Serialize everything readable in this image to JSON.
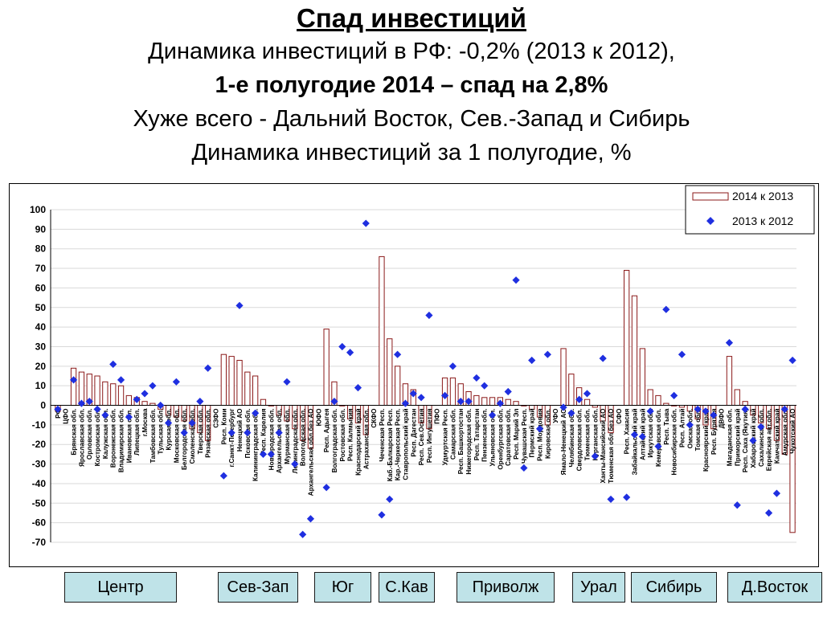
{
  "slide": {
    "title": "Спад инвестиций",
    "line1": "Динамика инвестиций в РФ: -0,2% (2013 к 2012),",
    "line2": "1-е полугодие 2014 – спад на 2,8%",
    "line3": "Хуже всего - Дальний Восток, Сев.-Запад и Сибирь",
    "line4": "Динамика инвестиций за 1 полугодие, %"
  },
  "regions": [
    "Центр",
    "Сев-Зап",
    "Юг",
    "С.Кав",
    "Приволж",
    "Урал",
    "Сибирь",
    "Д.Восток"
  ],
  "colors": {
    "bar_stroke": "#8b1a1a",
    "marker": "#1f2fe0",
    "button_bg": "#bfe3e8",
    "grid": "#d9d9d9"
  },
  "chart_data": {
    "type": "bar",
    "ylim": [
      -70,
      100
    ],
    "yticks": [
      100,
      90,
      80,
      70,
      60,
      50,
      40,
      30,
      20,
      10,
      0,
      -10,
      -20,
      -30,
      -40,
      -50,
      -60,
      -70
    ],
    "grid": true,
    "legend_position": "top-right",
    "series": [
      {
        "name": "2014 к 2013",
        "kind": "bar"
      },
      {
        "name": "2013 к 2012",
        "kind": "scatter"
      }
    ],
    "points": [
      {
        "label": "РФ",
        "bar": -3,
        "dot": -2
      },
      {
        "label": "ЦФО",
        "bar": null,
        "dot": null
      },
      {
        "label": "Брянская обл.",
        "bar": 19,
        "dot": 13
      },
      {
        "label": "Ярославская обл.",
        "bar": 17,
        "dot": 1
      },
      {
        "label": "Орловская обл.",
        "bar": 16,
        "dot": 2
      },
      {
        "label": "Костромская обл.",
        "bar": 15,
        "dot": -2
      },
      {
        "label": "Калужская обл.",
        "bar": 12,
        "dot": -5
      },
      {
        "label": "Воронежская обл.",
        "bar": 11,
        "dot": 21
      },
      {
        "label": "Владимирская обл.",
        "bar": 10,
        "dot": 13
      },
      {
        "label": "Ивановская обл.",
        "bar": 5,
        "dot": -6
      },
      {
        "label": "Липецкая обл.",
        "bar": 4,
        "dot": 3
      },
      {
        "label": "г.Москва",
        "bar": 2,
        "dot": 6
      },
      {
        "label": "Тамбовская обл.",
        "bar": 1,
        "dot": 10
      },
      {
        "label": "Тульская обл.",
        "bar": -2,
        "dot": 0
      },
      {
        "label": "Курская обл.",
        "bar": -5,
        "dot": -9
      },
      {
        "label": "Московская обл.",
        "bar": -6,
        "dot": 12
      },
      {
        "label": "Белгородская обл.",
        "bar": -8,
        "dot": -14
      },
      {
        "label": "Смоленская обл.",
        "bar": -12,
        "dot": -9
      },
      {
        "label": "Тверская обл.",
        "bar": -14,
        "dot": 2
      },
      {
        "label": "Рязанская обл.",
        "bar": -18,
        "dot": 19
      },
      {
        "label": "СЗФО",
        "bar": null,
        "dot": null
      },
      {
        "label": "Респ. Коми",
        "bar": 26,
        "dot": -36
      },
      {
        "label": "г.Санкт-Петербург",
        "bar": 25,
        "dot": -14
      },
      {
        "label": "Ненецкий АО",
        "bar": 23,
        "dot": 51
      },
      {
        "label": "Псковская обл.",
        "bar": 17,
        "dot": -14
      },
      {
        "label": "Калининградская обл.",
        "bar": 15,
        "dot": -4
      },
      {
        "label": "Респ. Карелия",
        "bar": 3,
        "dot": -25
      },
      {
        "label": "Новгородская обл.",
        "bar": 0,
        "dot": -25
      },
      {
        "label": "Архангельская обл.",
        "bar": -5,
        "dot": -14
      },
      {
        "label": "Мурманская обл.",
        "bar": -8,
        "dot": 12
      },
      {
        "label": "Ленинградская обл.",
        "bar": -12,
        "dot": -30
      },
      {
        "label": "Вологодская обл.",
        "bar": -18,
        "dot": -66
      },
      {
        "label": "Архангельская обл.без АО",
        "bar": -22,
        "dot": -58
      },
      {
        "label": "ЮФО",
        "bar": null,
        "dot": null
      },
      {
        "label": "Респ. Адыгея",
        "bar": 39,
        "dot": -42
      },
      {
        "label": "Волгоградская обл.",
        "bar": 12,
        "dot": 2
      },
      {
        "label": "Ростовская обл.",
        "bar": 0,
        "dot": 30
      },
      {
        "label": "Респ. Калмыкия",
        "bar": -7,
        "dot": 27
      },
      {
        "label": "Краснодарский край",
        "bar": -9,
        "dot": 9
      },
      {
        "label": "Астраханская обл.",
        "bar": -15,
        "dot": 93
      },
      {
        "label": "СКФО",
        "bar": null,
        "dot": null
      },
      {
        "label": "Чеченская Респ.",
        "bar": 76,
        "dot": -56
      },
      {
        "label": "Каб.-Балкарская Респ.",
        "bar": 34,
        "dot": -48
      },
      {
        "label": "Кар.-Черкесская Респ.",
        "bar": 20,
        "dot": 26
      },
      {
        "label": "Ставропольский край",
        "bar": 11,
        "dot": 1
      },
      {
        "label": "Респ. Дагестан",
        "bar": 8,
        "dot": 6
      },
      {
        "label": "Респ. Сев.Осетия",
        "bar": -9,
        "dot": 4
      },
      {
        "label": "Респ. Ингушетия",
        "bar": -12,
        "dot": 46
      },
      {
        "label": "ПФО",
        "bar": null,
        "dot": null
      },
      {
        "label": "Удмуртская Респ.",
        "bar": 14,
        "dot": 5
      },
      {
        "label": "Самарская обл.",
        "bar": 14,
        "dot": 20
      },
      {
        "label": "Респ. Башкортостан",
        "bar": 11,
        "dot": 2
      },
      {
        "label": "Нижегородская обл.",
        "bar": 7,
        "dot": 2
      },
      {
        "label": "Респ. Татарстан",
        "bar": 5,
        "dot": 14
      },
      {
        "label": "Пензенская обл.",
        "bar": 4,
        "dot": 10
      },
      {
        "label": "Ульяновская обл.",
        "bar": 4,
        "dot": -5
      },
      {
        "label": "Оренбургская обл.",
        "bar": 4,
        "dot": 1
      },
      {
        "label": "Саратовская обл.",
        "bar": 3,
        "dot": 7
      },
      {
        "label": "Респ. Марий Эл",
        "bar": 2,
        "dot": 64
      },
      {
        "label": "Чувашская Респ.",
        "bar": 0,
        "dot": -32
      },
      {
        "label": "Пермский край",
        "bar": -2,
        "dot": 23
      },
      {
        "label": "Респ. Мордовия",
        "bar": -6,
        "dot": -12
      },
      {
        "label": "Кировская обл.",
        "bar": -10,
        "dot": 26
      },
      {
        "label": "УФО",
        "bar": null,
        "dot": null
      },
      {
        "label": "Ямало-Ненецкий АО",
        "bar": 29,
        "dot": -1
      },
      {
        "label": "Челябинская обл.",
        "bar": 16,
        "dot": -4
      },
      {
        "label": "Свердловская обл.",
        "bar": 9,
        "dot": 3
      },
      {
        "label": "Тюменская обл.",
        "bar": 3,
        "dot": 6
      },
      {
        "label": "Курганская обл.",
        "bar": -1,
        "dot": -26
      },
      {
        "label": "Ханты-Мансийский АО",
        "bar": -8,
        "dot": 24
      },
      {
        "label": "Тюменская обл без АО",
        "bar": -14,
        "dot": -48
      },
      {
        "label": "СФО",
        "bar": null,
        "dot": null
      },
      {
        "label": "Респ. Хакасия",
        "bar": 69,
        "dot": -47
      },
      {
        "label": "Забайкальский край",
        "bar": 56,
        "dot": -15
      },
      {
        "label": "Алтайский край",
        "bar": 29,
        "dot": -16
      },
      {
        "label": "Иркутская обл.",
        "bar": 8,
        "dot": -3
      },
      {
        "label": "Кемеровская обл.",
        "bar": 5,
        "dot": -21
      },
      {
        "label": "Респ. Тыва",
        "bar": 1,
        "dot": 49
      },
      {
        "label": "Новосибирская обл.",
        "bar": 0,
        "dot": 5
      },
      {
        "label": "Респ. Алтай",
        "bar": -1,
        "dot": 26
      },
      {
        "label": "Омская обл.",
        "bar": -3,
        "dot": -10
      },
      {
        "label": "Томская обл.",
        "bar": -7,
        "dot": -2
      },
      {
        "label": "Красноярский край",
        "bar": -10,
        "dot": -3
      },
      {
        "label": "Респ. Бурятия",
        "bar": -12,
        "dot": -5
      },
      {
        "label": "ДВФО",
        "bar": null,
        "dot": null
      },
      {
        "label": "Магаданская обл.",
        "bar": 25,
        "dot": 32
      },
      {
        "label": "Приморский край",
        "bar": 8,
        "dot": -51
      },
      {
        "label": "Респ. Саха (Якутия)",
        "bar": 2,
        "dot": -2
      },
      {
        "label": "Хабаровский край",
        "bar": -5,
        "dot": -18
      },
      {
        "label": "Сахалинская обл.",
        "bar": -9,
        "dot": -11
      },
      {
        "label": "Еврейская авт.обл.",
        "bar": -12,
        "dot": -55
      },
      {
        "label": "Камчатский край",
        "bar": -18,
        "dot": -45
      },
      {
        "label": "Амурская обл.",
        "bar": -25,
        "dot": -2
      },
      {
        "label": "Чукотский АО",
        "bar": -65,
        "dot": 23
      }
    ]
  }
}
